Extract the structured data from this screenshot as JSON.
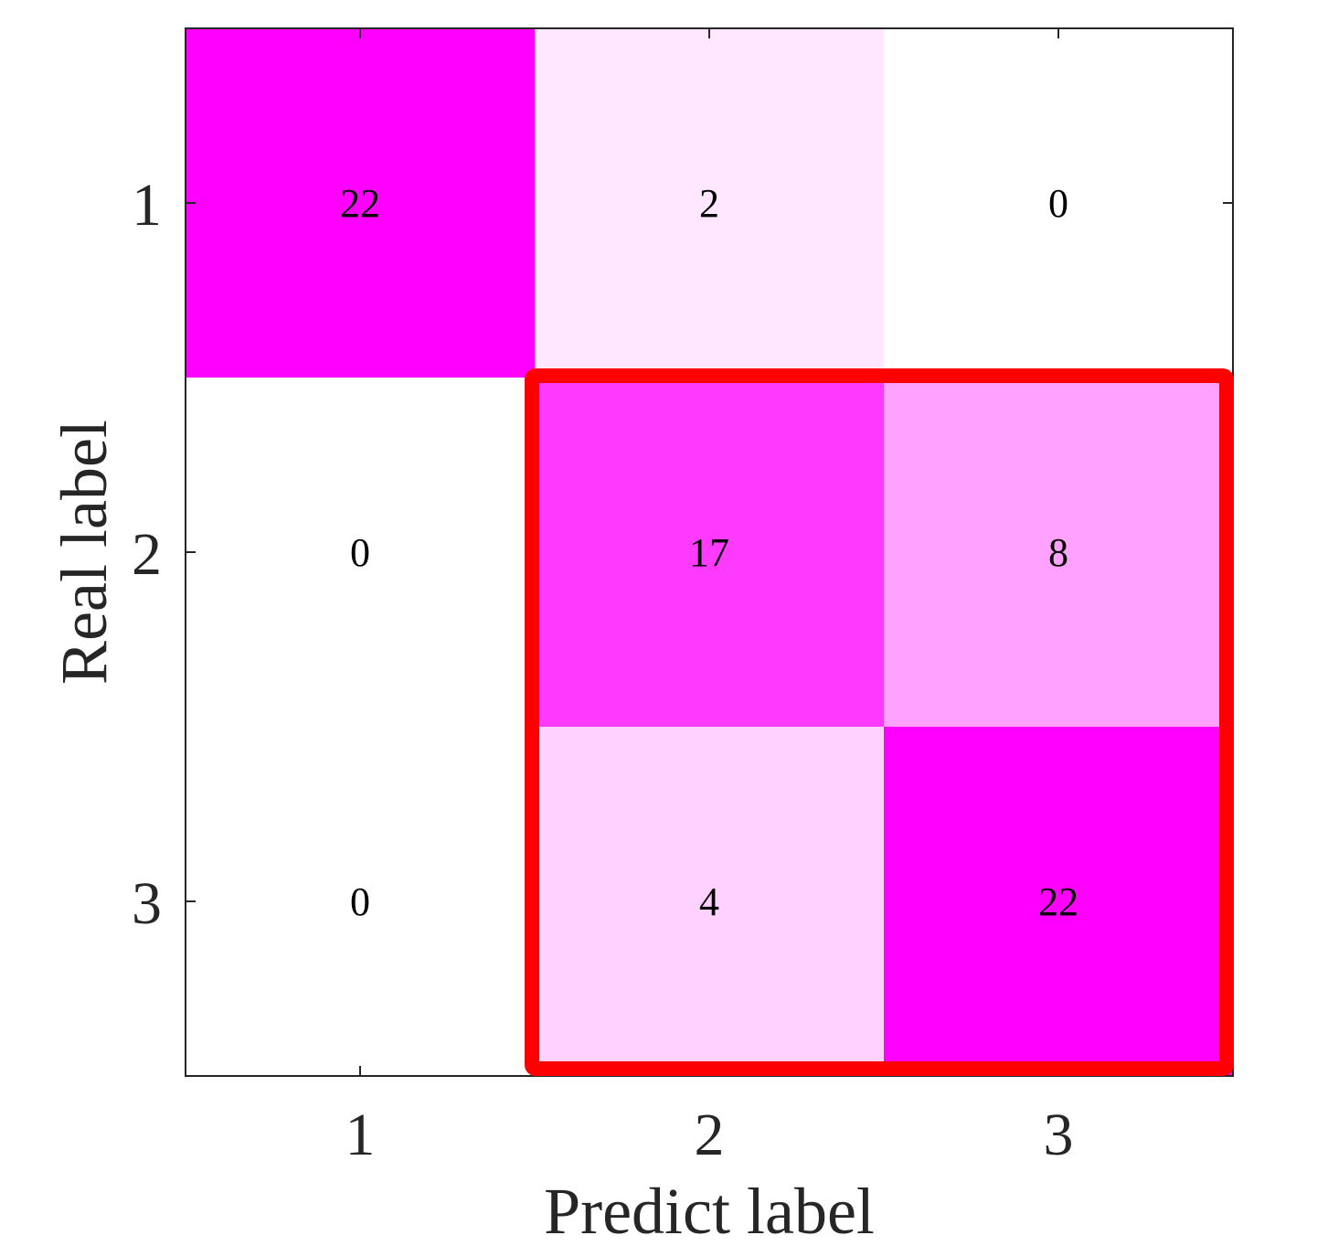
{
  "chart_data": {
    "type": "heatmap",
    "title": "",
    "xlabel": "Predict label",
    "ylabel": "Real label",
    "x_categories": [
      "1",
      "2",
      "3"
    ],
    "y_categories": [
      "1",
      "2",
      "3"
    ],
    "values": [
      [
        22,
        2,
        0
      ],
      [
        0,
        17,
        8
      ],
      [
        0,
        4,
        22
      ]
    ],
    "colormap": {
      "low": "#ffffff",
      "high": "#ff00ff",
      "min": 0,
      "max": 22
    },
    "highlight": {
      "rows": [
        2,
        3
      ],
      "cols": [
        2,
        3
      ],
      "color": "#ff0000"
    },
    "axis_color": "#262626",
    "text_color": "#000000"
  }
}
